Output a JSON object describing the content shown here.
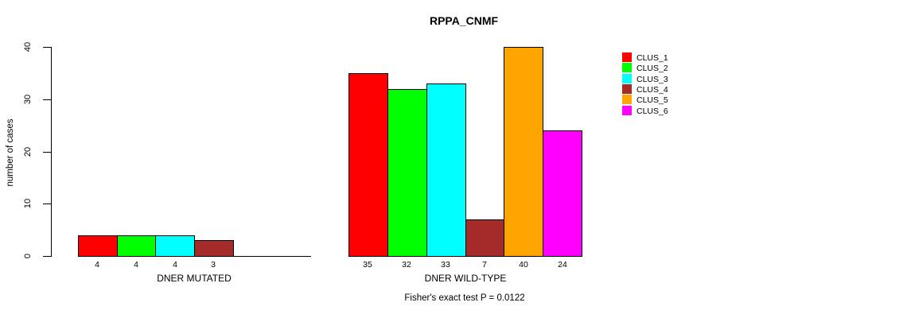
{
  "chart_data": {
    "type": "bar",
    "title": "RPPA_CNMF",
    "ylabel": "number of cases",
    "xlabel": "",
    "ylim": [
      0,
      40
    ],
    "yticks": [
      0,
      10,
      20,
      30,
      40
    ],
    "grid": false,
    "legend_position": "right",
    "categories": [
      "DNER MUTATED",
      "DNER WILD-TYPE"
    ],
    "series": [
      {
        "name": "CLUS_1",
        "color": "#ff0000",
        "values": [
          4,
          35
        ]
      },
      {
        "name": "CLUS_2",
        "color": "#00ff00",
        "values": [
          4,
          32
        ]
      },
      {
        "name": "CLUS_3",
        "color": "#00ffff",
        "values": [
          4,
          33
        ]
      },
      {
        "name": "CLUS_4",
        "color": "#a52a2a",
        "values": [
          3,
          7
        ]
      },
      {
        "name": "CLUS_5",
        "color": "#ffa500",
        "values": [
          0,
          40
        ]
      },
      {
        "name": "CLUS_6",
        "color": "#ff00ff",
        "values": [
          0,
          24
        ]
      }
    ],
    "bar_value_labels": {
      "DNER MUTATED": [
        "4",
        "4",
        "4",
        "3"
      ],
      "DNER WILD-TYPE": [
        "35",
        "32",
        "33",
        "7",
        "40",
        "24"
      ]
    },
    "footnote": "Fisher's exact test P = 0.0122"
  }
}
